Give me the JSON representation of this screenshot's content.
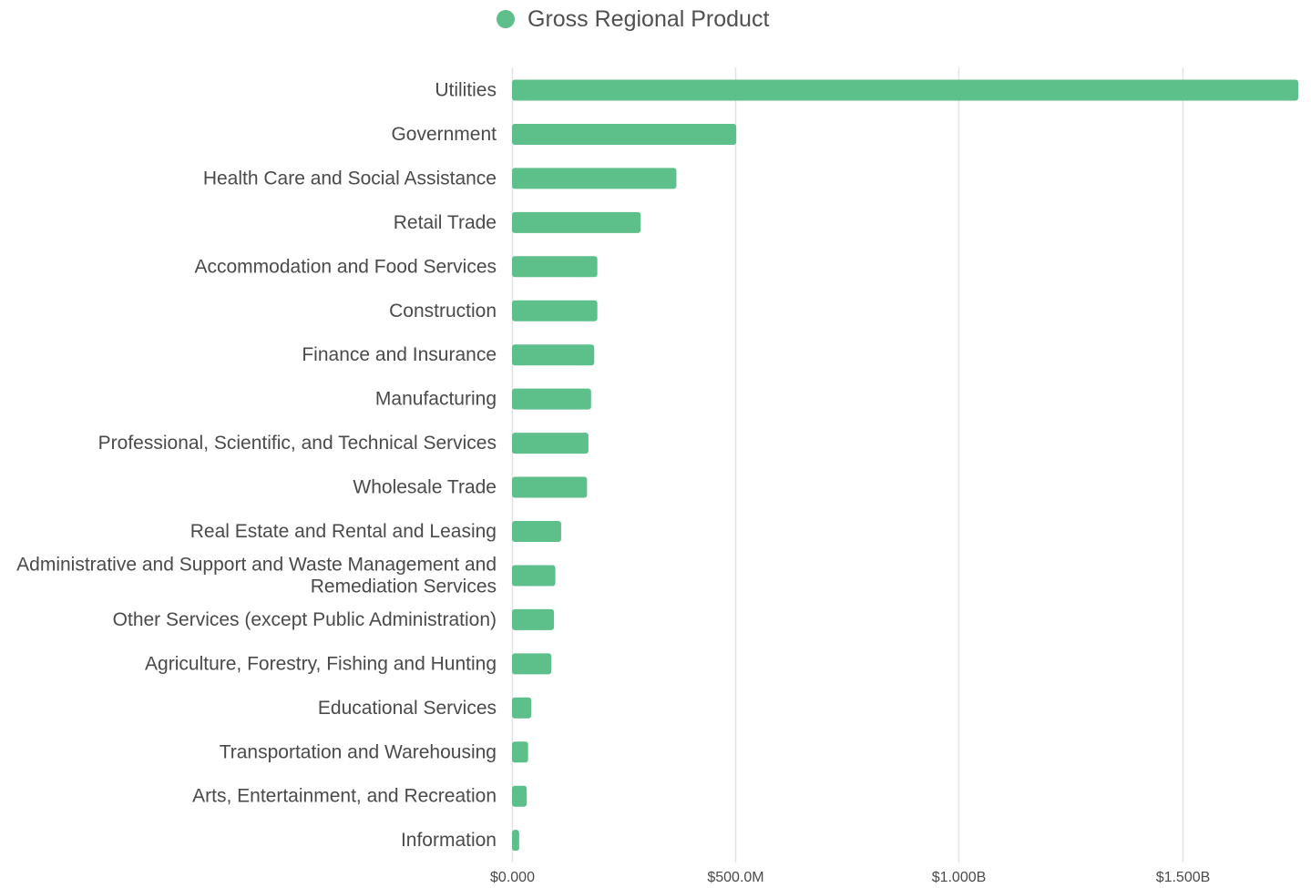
{
  "chart_data": {
    "type": "bar",
    "orientation": "horizontal",
    "title": "",
    "xlabel": "",
    "ylabel": "",
    "categories": [
      "Utilities",
      "Government",
      "Health Care and Social Assistance",
      "Retail Trade",
      "Accommodation and Food Services",
      "Construction",
      "Finance and Insurance",
      "Manufacturing",
      "Professional, Scientific, and Technical Services",
      "Wholesale Trade",
      "Real Estate and Rental and Leasing",
      "Administrative and Support and Waste Management and Remediation Services",
      "Other Services (except Public Administration)",
      "Agriculture, Forestry, Fishing and Hunting",
      "Educational Services",
      "Transportation and Warehousing",
      "Arts, Entertainment, and Recreation",
      "Information"
    ],
    "category_label_lines": [
      [
        "Utilities"
      ],
      [
        "Government"
      ],
      [
        "Health Care and Social Assistance"
      ],
      [
        "Retail Trade"
      ],
      [
        "Accommodation and Food Services"
      ],
      [
        "Construction"
      ],
      [
        "Finance and Insurance"
      ],
      [
        "Manufacturing"
      ],
      [
        "Professional, Scientific, and Technical Services"
      ],
      [
        "Wholesale Trade"
      ],
      [
        "Real Estate and Rental and Leasing"
      ],
      [
        "Administrative and Support and Waste Management and",
        "Remediation Services"
      ],
      [
        "Other Services (except Public Administration)"
      ],
      [
        "Agriculture, Forestry, Fishing and Hunting"
      ],
      [
        "Educational Services"
      ],
      [
        "Transportation and Warehousing"
      ],
      [
        "Arts, Entertainment, and Recreation"
      ],
      [
        "Information"
      ]
    ],
    "series": [
      {
        "name": "Gross Regional Product",
        "color": "#5dbf8a",
        "values": [
          1760000000,
          502000000,
          368000000,
          288000000,
          191000000,
          191000000,
          184000000,
          177000000,
          171000000,
          168000000,
          110000000,
          97000000,
          94000000,
          88000000,
          43000000,
          36000000,
          33000000,
          16000000
        ]
      }
    ],
    "xlim": [
      0,
      1760000000
    ],
    "x_ticks": [
      {
        "value": 0,
        "label": "$0.000"
      },
      {
        "value": 500000000,
        "label": "$500.0M"
      },
      {
        "value": 1000000000,
        "label": "$1.000B"
      },
      {
        "value": 1500000000,
        "label": "$1.500B"
      }
    ],
    "grid": true,
    "legend_position": "top-center"
  },
  "colors": {
    "bar": "#5dbf8a",
    "grid": "#e3e3e3",
    "label": "#4a4a4a"
  }
}
